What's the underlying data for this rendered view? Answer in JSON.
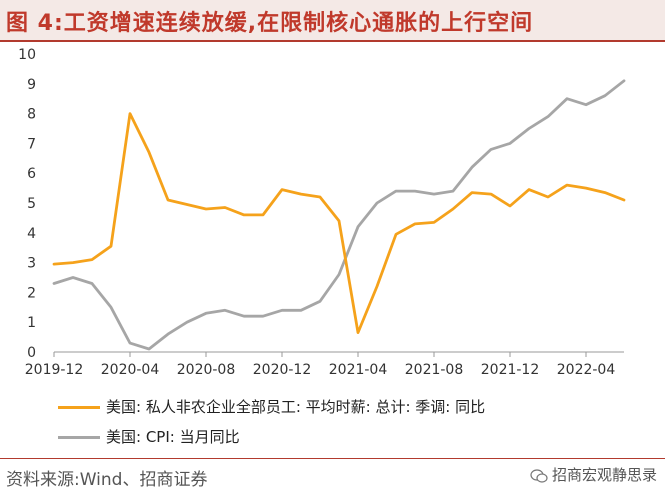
{
  "figure": {
    "title": "图 4:工资增速连续放缓,在限制核心通胀的上行空间",
    "source": "资料来源:Wind、招商证券",
    "watermark": "招商宏观静思录"
  },
  "colors": {
    "wage": "#f5a21b",
    "cpi": "#a6a6a6",
    "title": "#c0392b",
    "axis": "#999999"
  },
  "chart_data": {
    "type": "line",
    "title": "",
    "xlabel": "",
    "ylabel": "",
    "ylim": [
      0,
      10
    ],
    "yticks": [
      0,
      1,
      2,
      3,
      4,
      5,
      6,
      7,
      8,
      9,
      10
    ],
    "grid": false,
    "legend_position": "bottom",
    "x_tick_labels": [
      "2019-12",
      "2020-04",
      "2020-08",
      "2020-12",
      "2021-04",
      "2021-08",
      "2021-12",
      "2022-04"
    ],
    "x": [
      "2019-12",
      "2020-01",
      "2020-02",
      "2020-03",
      "2020-04",
      "2020-05",
      "2020-06",
      "2020-07",
      "2020-08",
      "2020-09",
      "2020-10",
      "2020-11",
      "2020-12",
      "2021-01",
      "2021-02",
      "2021-03",
      "2021-04",
      "2021-05",
      "2021-06",
      "2021-07",
      "2021-08",
      "2021-09",
      "2021-10",
      "2021-11",
      "2021-12",
      "2022-01",
      "2022-02",
      "2022-03",
      "2022-04",
      "2022-05",
      "2022-06"
    ],
    "series": [
      {
        "name": "美国: 私人非农企业全部员工: 平均时薪: 总计: 季调: 同比",
        "values": [
          2.95,
          3.0,
          3.1,
          3.55,
          8.0,
          6.7,
          5.1,
          4.95,
          4.8,
          4.85,
          4.6,
          4.6,
          5.45,
          5.3,
          5.2,
          4.4,
          0.65,
          2.2,
          3.95,
          4.3,
          4.35,
          4.8,
          5.35,
          5.3,
          4.9,
          5.45,
          5.2,
          5.6,
          5.5,
          5.35,
          5.1
        ]
      },
      {
        "name": "美国: CPI: 当月同比",
        "values": [
          2.3,
          2.5,
          2.3,
          1.5,
          0.3,
          0.1,
          0.6,
          1.0,
          1.3,
          1.4,
          1.2,
          1.2,
          1.4,
          1.4,
          1.7,
          2.6,
          4.2,
          5.0,
          5.4,
          5.4,
          5.3,
          5.4,
          6.2,
          6.8,
          7.0,
          7.5,
          7.9,
          8.5,
          8.3,
          8.6,
          9.1
        ]
      }
    ]
  }
}
